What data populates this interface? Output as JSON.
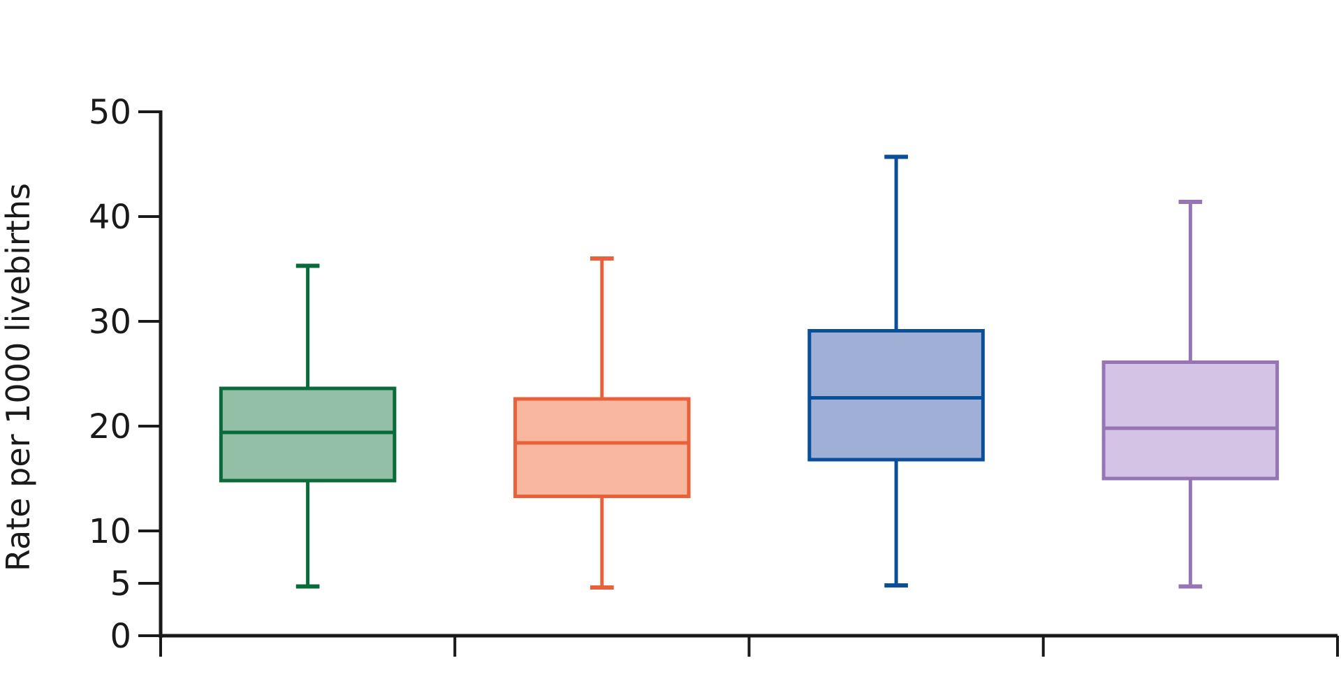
{
  "chart_data": {
    "type": "box",
    "title": "",
    "xlabel": "",
    "ylabel": "Rate per 1000 livebirths",
    "ylim": [
      0,
      50
    ],
    "yticks": [
      0,
      5,
      10,
      20,
      30,
      40,
      50
    ],
    "ytick_labels": [
      "0",
      "5",
      "10",
      "20",
      "30",
      "40",
      "50"
    ],
    "grid": false,
    "legend": "none",
    "boxes": [
      {
        "whisker_low": 4.7,
        "q1": 14.8,
        "median": 19.4,
        "q3": 23.6,
        "whisker_high": 35.3,
        "stroke": "#0a6b3a",
        "fill": "#93bfa7"
      },
      {
        "whisker_low": 4.6,
        "q1": 13.3,
        "median": 18.4,
        "q3": 22.6,
        "whisker_high": 36.0,
        "stroke": "#e8613a",
        "fill": "#f8b79e"
      },
      {
        "whisker_low": 4.8,
        "q1": 16.8,
        "median": 22.7,
        "q3": 29.1,
        "whisker_high": 45.7,
        "stroke": "#0a4f99",
        "fill": "#a0afd6"
      },
      {
        "whisker_low": 4.7,
        "q1": 15.0,
        "median": 19.8,
        "q3": 26.1,
        "whisker_high": 41.4,
        "stroke": "#9675b5",
        "fill": "#d4c3e4"
      }
    ]
  }
}
